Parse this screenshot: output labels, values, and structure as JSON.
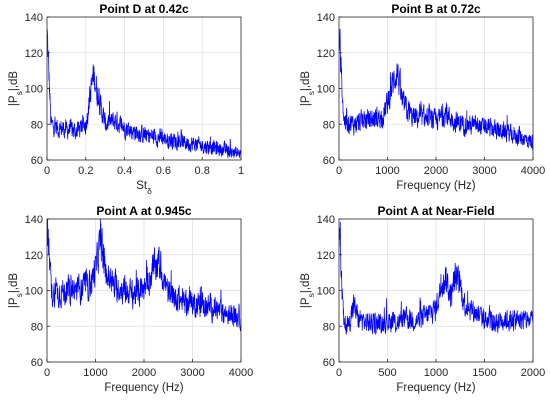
{
  "chart_data": [
    {
      "type": "line",
      "title": "Point D at 0.42c",
      "xlabel": "St",
      "xlabel_sub": "δ",
      "ylabel": "|P",
      "ylabel_sub": "s",
      "ylabel_suffix": "|,dB",
      "xlim": [
        0,
        1
      ],
      "ylim": [
        60,
        140
      ],
      "xticks": [
        0,
        0.2,
        0.4,
        0.6,
        0.8,
        1
      ],
      "xtick_labels": [
        "0",
        "0.2",
        "0.4",
        "0.6",
        "0.8",
        "1"
      ],
      "yticks": [
        60,
        80,
        100,
        120,
        140
      ],
      "ytick_labels": [
        "60",
        "80",
        "100",
        "120",
        "140"
      ],
      "grid": true,
      "line_color": "#0000ff",
      "series": [
        {
          "x": [
            0,
            0.02,
            0.05,
            0.1,
            0.15,
            0.2,
            0.22,
            0.24,
            0.26,
            0.28,
            0.3,
            0.35,
            0.4,
            0.45,
            0.5,
            0.6,
            0.7,
            0.8,
            0.9,
            1
          ],
          "y": [
            132,
            80,
            78,
            77,
            76,
            80,
            95,
            108,
            97,
            88,
            80,
            82,
            78,
            76,
            74,
            72,
            70,
            68,
            66,
            63
          ]
        }
      ]
    },
    {
      "type": "line",
      "title": "Point B at 0.72c",
      "xlabel": "Frequency (Hz)",
      "xlabel_sub": "",
      "ylabel": "|P",
      "ylabel_sub": "s",
      "ylabel_suffix": "|,dB",
      "xlim": [
        0,
        4000
      ],
      "ylim": [
        60,
        140
      ],
      "xticks": [
        0,
        1000,
        2000,
        3000,
        4000
      ],
      "xtick_labels": [
        "0",
        "1000",
        "2000",
        "3000",
        "4000"
      ],
      "yticks": [
        60,
        80,
        100,
        120,
        140
      ],
      "ytick_labels": [
        "60",
        "80",
        "100",
        "120",
        "140"
      ],
      "grid": true,
      "line_color": "#0000ff",
      "series": [
        {
          "x": [
            0,
            100,
            300,
            500,
            700,
            900,
            1000,
            1100,
            1200,
            1300,
            1500,
            1800,
            2000,
            2200,
            2400,
            2600,
            3000,
            3400,
            3800,
            4000
          ],
          "y": [
            130,
            82,
            80,
            82,
            83,
            84,
            92,
            102,
            110,
            92,
            84,
            83,
            82,
            86,
            81,
            80,
            78,
            76,
            72,
            70
          ]
        }
      ]
    },
    {
      "type": "line",
      "title": "Point A at 0.945c",
      "xlabel": "Frequency (Hz)",
      "xlabel_sub": "",
      "ylabel": "|P",
      "ylabel_sub": "s",
      "ylabel_suffix": "|,dB",
      "xlim": [
        0,
        4000
      ],
      "ylim": [
        60,
        140
      ],
      "xticks": [
        0,
        1000,
        2000,
        3000,
        4000
      ],
      "xtick_labels": [
        "0",
        "1000",
        "2000",
        "3000",
        "4000"
      ],
      "yticks": [
        60,
        80,
        100,
        120,
        140
      ],
      "ytick_labels": [
        "60",
        "80",
        "100",
        "120",
        "140"
      ],
      "grid": true,
      "line_color": "#0000ff",
      "series": [
        {
          "x": [
            0,
            100,
            300,
            500,
            700,
            900,
            1000,
            1100,
            1200,
            1400,
            1600,
            1800,
            2000,
            2200,
            2300,
            2500,
            2800,
            3200,
            3600,
            4000
          ],
          "y": [
            132,
            98,
            99,
            100,
            101,
            104,
            112,
            128,
            110,
            102,
            100,
            98,
            100,
            112,
            116,
            98,
            94,
            92,
            88,
            85
          ]
        }
      ]
    },
    {
      "type": "line",
      "title": "Point A at Near-Field",
      "xlabel": "Frequency (Hz)",
      "xlabel_sub": "",
      "ylabel": "|P",
      "ylabel_sub": "s",
      "ylabel_suffix": "|,dB",
      "xlim": [
        0,
        2000
      ],
      "ylim": [
        60,
        140
      ],
      "xticks": [
        0,
        500,
        1000,
        1500,
        2000
      ],
      "xtick_labels": [
        "0",
        "500",
        "1000",
        "1500",
        "2000"
      ],
      "yticks": [
        60,
        80,
        100,
        120,
        140
      ],
      "ytick_labels": [
        "60",
        "80",
        "100",
        "120",
        "140"
      ],
      "grid": true,
      "line_color": "#0000ff",
      "series": [
        {
          "x": [
            0,
            50,
            100,
            150,
            200,
            300,
            400,
            500,
            600,
            700,
            800,
            900,
            1000,
            1050,
            1100,
            1150,
            1200,
            1250,
            1300,
            1400,
            1500,
            1600,
            1700,
            1800,
            1900,
            2000
          ],
          "y": [
            132,
            80,
            81,
            92,
            84,
            82,
            81,
            83,
            82,
            84,
            83,
            86,
            90,
            102,
            108,
            96,
            108,
            102,
            92,
            88,
            84,
            82,
            84,
            83,
            84,
            83
          ]
        }
      ]
    }
  ]
}
